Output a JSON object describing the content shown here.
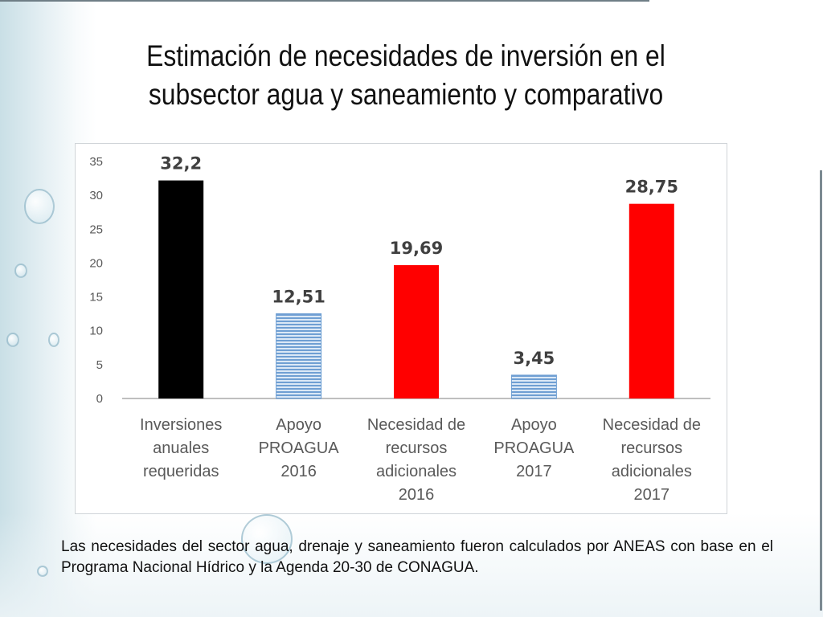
{
  "slide": {
    "title_line1": "Estimación de necesidades de inversión en el",
    "title_line2": "subsector agua y saneamiento y comparativo",
    "caption": "Las necesidades del sector agua, drenaje y saneamiento fueron calculados por ANEAS con base en el Programa Nacional Hídrico y la Agenda 20-30 de CONAGUA."
  },
  "chart_data": {
    "type": "bar",
    "title": "",
    "xlabel": "",
    "ylabel": "",
    "ylim": [
      0,
      35
    ],
    "yticks": [
      "0",
      "5",
      "10",
      "15",
      "20",
      "25",
      "30",
      "35"
    ],
    "grid": false,
    "legend": "none",
    "categories": [
      [
        "Inversiones",
        "anuales",
        "requeridas"
      ],
      [
        "Apoyo",
        "PROAGUA",
        "2016"
      ],
      [
        "Necesidad de",
        "recursos",
        "adicionales",
        "2016"
      ],
      [
        "Apoyo",
        "PROAGUA",
        "2017"
      ],
      [
        "Necesidad de",
        "recursos",
        "adicionales",
        "2017"
      ]
    ],
    "values": [
      32.2,
      12.51,
      19.69,
      3.45,
      28.75
    ],
    "value_labels": [
      "32,2",
      "12,51",
      "19,69",
      "3,45",
      "28,75"
    ],
    "bar_colors": [
      "#000000",
      "#6f9fd3",
      "#ff0000",
      "#6f9fd3",
      "#ff0000"
    ],
    "bar_patterns": [
      "solid",
      "striped",
      "solid",
      "striped",
      "solid"
    ]
  }
}
